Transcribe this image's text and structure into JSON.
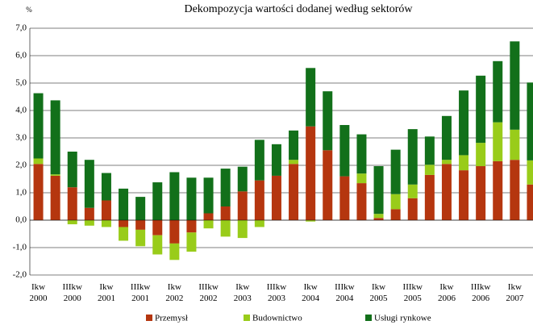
{
  "chart_data": {
    "type": "bar",
    "stacked": true,
    "title": "Dekompozycja wartości dodanej według sektorów",
    "y_label": "%",
    "categories": [
      [
        "Ikw",
        "2000"
      ],
      null,
      [
        "IIIkw",
        "2000"
      ],
      null,
      [
        "Ikw",
        "2001"
      ],
      null,
      [
        "IIIkw",
        "2001"
      ],
      null,
      [
        "Ikw",
        "2002"
      ],
      null,
      [
        "IIIkw",
        "2002"
      ],
      null,
      [
        "Ikw",
        "2003"
      ],
      null,
      [
        "IIIkw",
        "2003"
      ],
      null,
      [
        "Ikw",
        "2004"
      ],
      null,
      [
        "IIIkw",
        "2004"
      ],
      null,
      [
        "Ikw",
        "2005"
      ],
      null,
      [
        "IIIkw",
        "2005"
      ],
      null,
      [
        "Ikw",
        "2006"
      ],
      null,
      [
        "IIIkw",
        "2006"
      ],
      null,
      [
        "Ikw",
        "2007"
      ],
      null
    ],
    "series": [
      {
        "name": "Przemysł",
        "color": "#b5360f",
        "values": [
          2.05,
          1.62,
          1.2,
          0.45,
          0.72,
          -0.25,
          -0.35,
          -0.55,
          -0.85,
          -0.45,
          0.25,
          0.5,
          1.05,
          1.45,
          1.62,
          2.05,
          3.42,
          2.55,
          1.6,
          1.35,
          0.08,
          0.4,
          0.8,
          1.65,
          2.05,
          1.82,
          1.97,
          2.15,
          2.2,
          1.3
        ]
      },
      {
        "name": "Budownictwo",
        "color": "#99cc1a",
        "values": [
          0.2,
          0.05,
          -0.15,
          -0.2,
          -0.25,
          -0.5,
          -0.6,
          -0.7,
          -0.6,
          -0.7,
          -0.3,
          -0.6,
          -0.65,
          -0.25,
          0,
          0.15,
          -0.05,
          0,
          0,
          0.35,
          0.15,
          0.55,
          0.5,
          0.37,
          0.15,
          0.55,
          0.85,
          1.42,
          1.1,
          0.88
        ]
      },
      {
        "name": "Usługi rynkowe",
        "color": "#12701a",
        "values": [
          2.38,
          2.7,
          1.3,
          1.75,
          1.0,
          1.15,
          0.85,
          1.38,
          1.75,
          1.55,
          1.3,
          1.38,
          0.9,
          1.48,
          1.15,
          1.07,
          2.13,
          2.15,
          1.87,
          1.43,
          1.74,
          1.62,
          2.02,
          1.03,
          1.6,
          2.36,
          2.45,
          2.23,
          3.22,
          2.84
        ]
      }
    ],
    "ylim": [
      -2,
      7
    ],
    "yticks": [
      {
        "value": -2,
        "label": "-2,0"
      },
      {
        "value": -1,
        "label": "-1,0"
      },
      {
        "value": 0,
        "label": "0,0"
      },
      {
        "value": 1,
        "label": "1,0"
      },
      {
        "value": 2,
        "label": "2,0"
      },
      {
        "value": 3,
        "label": "3,0"
      },
      {
        "value": 4,
        "label": "4,0"
      },
      {
        "value": 5,
        "label": "5,0"
      },
      {
        "value": 6,
        "label": "6,0"
      },
      {
        "value": 7,
        "label": "7,0"
      }
    ],
    "grid": true,
    "legend": "bottom"
  }
}
